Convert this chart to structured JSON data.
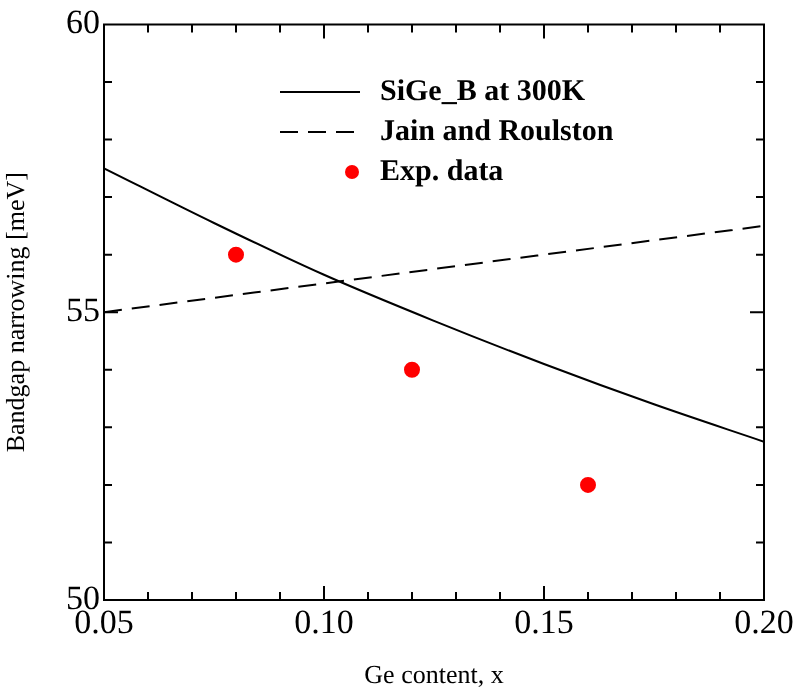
{
  "chart_data": {
    "type": "line",
    "xlabel": "Ge content, x",
    "ylabel": "Bandgap narrowing [meV]",
    "xlim": [
      0.05,
      0.2
    ],
    "ylim": [
      50,
      60
    ],
    "xticks": [
      {
        "value": 0.05,
        "label": "0.05"
      },
      {
        "value": 0.06,
        "label": null
      },
      {
        "value": 0.07,
        "label": null
      },
      {
        "value": 0.08,
        "label": null
      },
      {
        "value": 0.09,
        "label": null
      },
      {
        "value": 0.1,
        "label": "0.10"
      },
      {
        "value": 0.11,
        "label": null
      },
      {
        "value": 0.12,
        "label": null
      },
      {
        "value": 0.13,
        "label": null
      },
      {
        "value": 0.14,
        "label": null
      },
      {
        "value": 0.15,
        "label": "0.15"
      },
      {
        "value": 0.16,
        "label": null
      },
      {
        "value": 0.17,
        "label": null
      },
      {
        "value": 0.18,
        "label": null
      },
      {
        "value": 0.19,
        "label": null
      },
      {
        "value": 0.2,
        "label": "0.20"
      }
    ],
    "yticks": [
      50,
      {
        "value": 51,
        "label": null
      },
      {
        "value": 52,
        "label": null
      },
      {
        "value": 53,
        "label": null
      },
      {
        "value": 54,
        "label": null
      },
      55,
      {
        "value": 56,
        "label": null
      },
      {
        "value": 57,
        "label": null
      },
      {
        "value": 58,
        "label": null
      },
      {
        "value": 59,
        "label": null
      },
      60
    ],
    "grid": false,
    "legend": "top",
    "series": [
      {
        "name": "SiGe_B at 300K",
        "line_style": "solid",
        "marker": "none",
        "color": "#000000",
        "x": [
          0.05,
          0.075,
          0.1,
          0.125,
          0.15,
          0.175,
          0.2
        ],
        "values": [
          57.5,
          56.55,
          55.65,
          54.85,
          54.1,
          53.4,
          52.75
        ]
      },
      {
        "name": "Jain and Roulston",
        "line_style": "dashed",
        "marker": "none",
        "color": "#000000",
        "x": [
          0.05,
          0.2
        ],
        "values": [
          55.0,
          56.5
        ]
      },
      {
        "name": "Exp. data",
        "type": "scatter",
        "marker": "circle",
        "color": "#ff0000",
        "x": [
          0.08,
          0.12,
          0.16
        ],
        "values": [
          56,
          54,
          52
        ]
      }
    ]
  }
}
